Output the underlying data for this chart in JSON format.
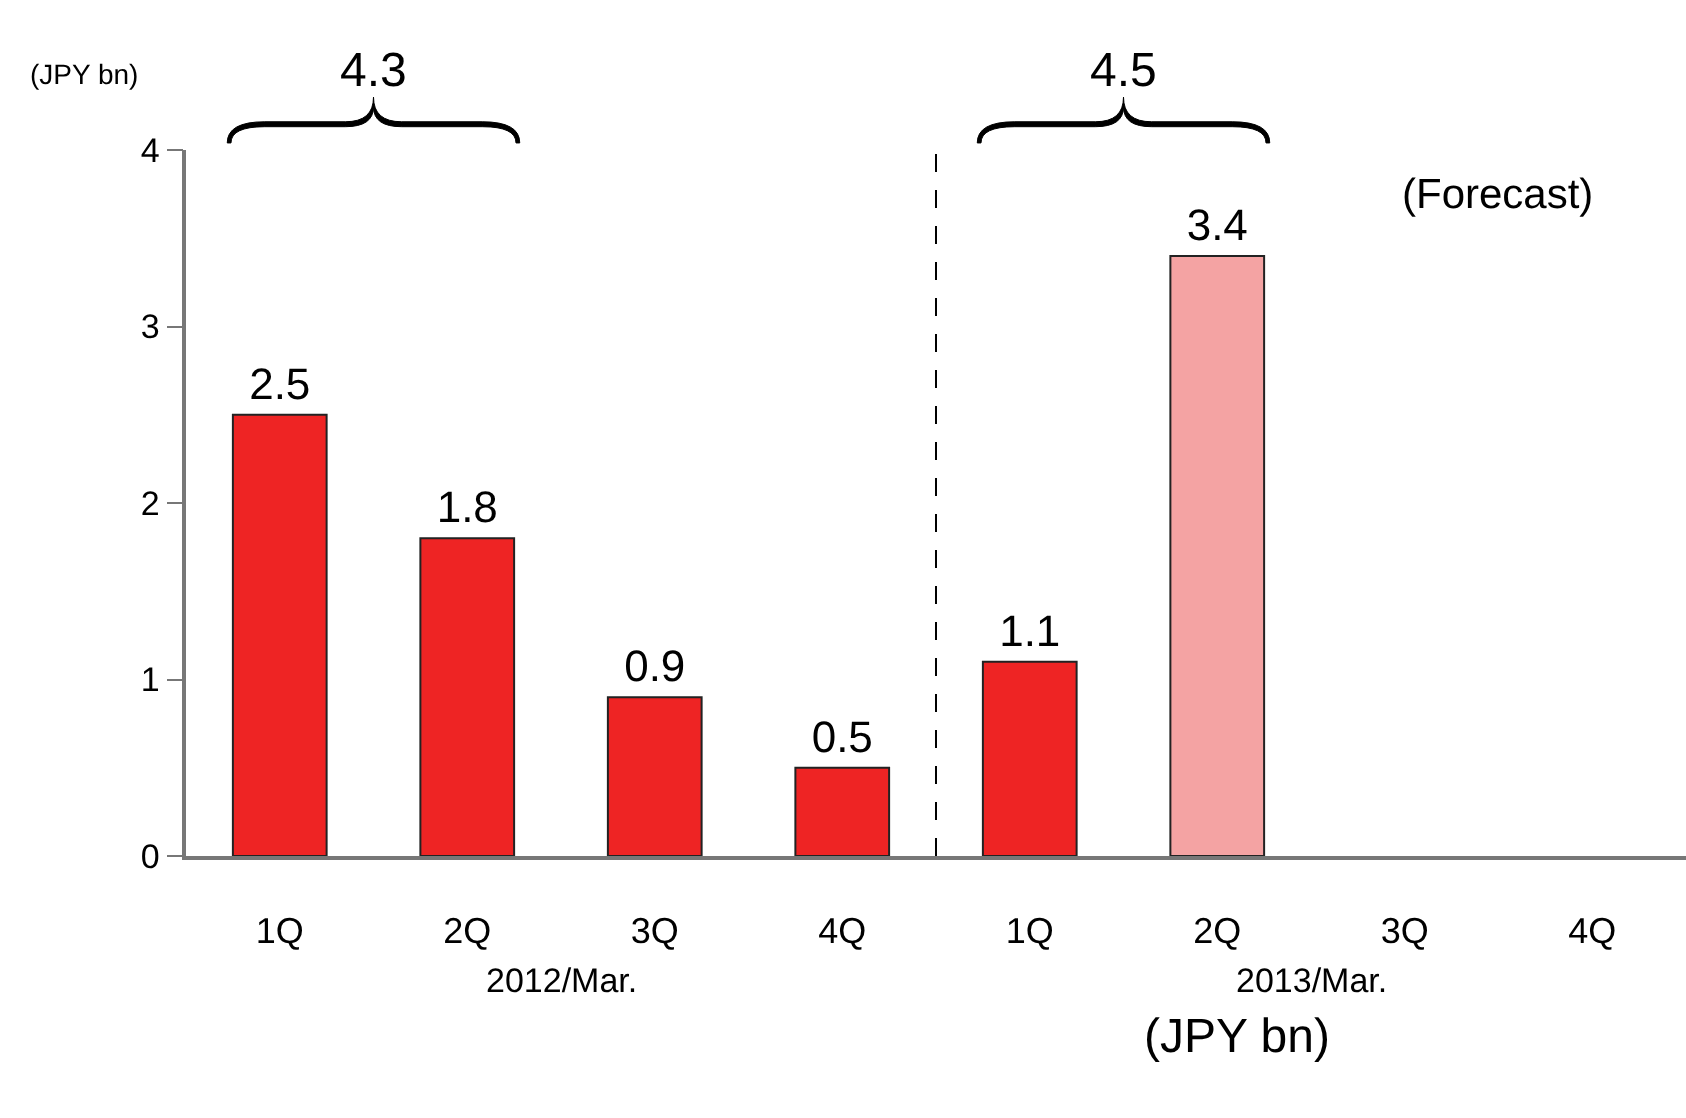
{
  "chart_data": {
    "type": "bar",
    "ylabel": "(JPY bn)",
    "categories": [
      "1Q",
      "2Q",
      "3Q",
      "4Q",
      "1Q",
      "2Q",
      "3Q",
      "4Q"
    ],
    "values": [
      2.5,
      1.8,
      0.9,
      0.5,
      1.1,
      3.4,
      null,
      null
    ],
    "colors": [
      "#ee2424",
      "#ee2424",
      "#ee2424",
      "#ee2424",
      "#ee2424",
      "#f4a3a3",
      "#ee2424",
      "#ee2424"
    ],
    "data_labels": true,
    "ylim": [
      0,
      4
    ],
    "yticks": [
      0,
      1,
      2,
      3,
      4
    ],
    "annotations": [
      "4.3",
      "4.5",
      "(Forecast)",
      "2012/Mar.",
      "2013/Mar.",
      "(JPY bn)"
    ]
  }
}
